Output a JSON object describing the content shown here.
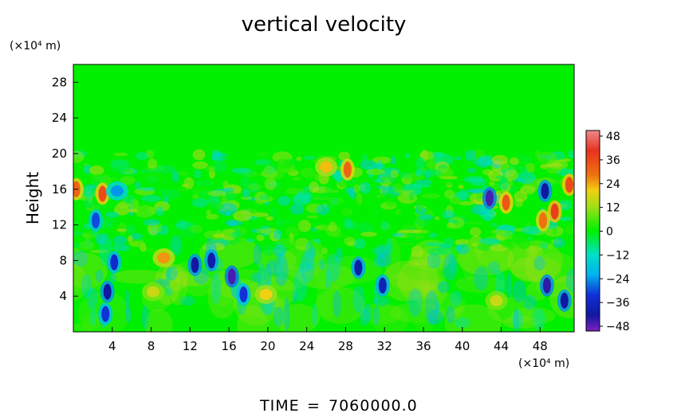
{
  "chart_data": {
    "type": "heatmap",
    "title": "vertical velocity",
    "ylabel": "Height",
    "xunit": "(×10⁴ m)",
    "yunit": "(×10⁴ m)",
    "xlim": [
      0,
      51.5
    ],
    "ylim": [
      0,
      30
    ],
    "xticks": [
      4,
      8,
      12,
      16,
      20,
      24,
      28,
      32,
      36,
      40,
      44,
      48
    ],
    "yticks": [
      4,
      8,
      12,
      16,
      20,
      24,
      28
    ],
    "colorbar": {
      "ticks": [
        48,
        36,
        24,
        12,
        0,
        -12,
        -24,
        -36,
        -48
      ],
      "range": [
        -48,
        48
      ]
    },
    "features": [
      {
        "x": 3.5,
        "y": 4.5,
        "v": -40
      },
      {
        "x": 3.3,
        "y": 2.0,
        "v": -30
      },
      {
        "x": 4.2,
        "y": 7.8,
        "v": -32
      },
      {
        "x": 2.3,
        "y": 12.5,
        "v": -28
      },
      {
        "x": 3.0,
        "y": 15.5,
        "v": 34
      },
      {
        "x": 4.5,
        "y": 15.8,
        "v": -22
      },
      {
        "x": 0.3,
        "y": 16.0,
        "v": 30
      },
      {
        "x": 12.5,
        "y": 7.5,
        "v": -40
      },
      {
        "x": 14.2,
        "y": 8.0,
        "v": -38
      },
      {
        "x": 16.3,
        "y": 6.2,
        "v": -44
      },
      {
        "x": 17.5,
        "y": 4.2,
        "v": -30
      },
      {
        "x": 29.3,
        "y": 7.2,
        "v": -38
      },
      {
        "x": 31.8,
        "y": 5.2,
        "v": -36
      },
      {
        "x": 42.8,
        "y": 15.0,
        "v": -44
      },
      {
        "x": 44.5,
        "y": 14.5,
        "v": 32
      },
      {
        "x": 48.5,
        "y": 15.8,
        "v": -40
      },
      {
        "x": 49.5,
        "y": 13.5,
        "v": 36
      },
      {
        "x": 48.3,
        "y": 12.5,
        "v": 28
      },
      {
        "x": 51.0,
        "y": 16.5,
        "v": 34
      },
      {
        "x": 48.7,
        "y": 5.2,
        "v": -42
      },
      {
        "x": 50.5,
        "y": 3.5,
        "v": -40
      },
      {
        "x": 28.2,
        "y": 18.2,
        "v": 30
      },
      {
        "x": 19.8,
        "y": 4.2,
        "v": 18
      },
      {
        "x": 9.3,
        "y": 8.3,
        "v": 24
      },
      {
        "x": 43.5,
        "y": 3.5,
        "v": 14
      },
      {
        "x": 8.2,
        "y": 4.5,
        "v": 14
      },
      {
        "x": 26.0,
        "y": 18.5,
        "v": 20
      }
    ]
  },
  "footer": {
    "label": "TIME",
    "equals": "=",
    "value": "7060000.0"
  }
}
